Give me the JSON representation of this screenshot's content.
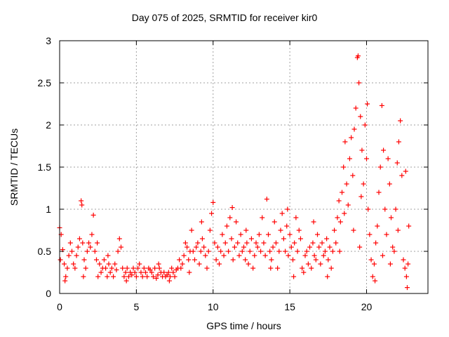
{
  "chart_data": {
    "type": "scatter",
    "title": "Day 075 of 2025, SRMTID for receiver kir0",
    "xlabel": "GPS time / hours",
    "ylabel": "SRMTID / TECUs",
    "xlim": [
      0,
      24
    ],
    "ylim": [
      0,
      3
    ],
    "xticks": [
      0,
      5,
      10,
      15,
      20
    ],
    "yticks": [
      0,
      0.5,
      1,
      1.5,
      2,
      2.5,
      3
    ],
    "ytick_labels": [
      "0",
      "0.5",
      "1",
      "1.5",
      "2",
      "2.5",
      "3"
    ],
    "grid": true,
    "marker": "+",
    "color": "#ff0000",
    "series": [
      {
        "name": "SRMTID",
        "points": [
          [
            0.0,
            0.78
          ],
          [
            0.1,
            0.7
          ],
          [
            0.2,
            0.52
          ],
          [
            0.3,
            0.35
          ],
          [
            0.4,
            0.2
          ],
          [
            0.5,
            0.3
          ],
          [
            0.6,
            0.45
          ],
          [
            0.7,
            0.6
          ],
          [
            0.8,
            0.5
          ],
          [
            0.9,
            0.35
          ],
          [
            1.0,
            0.3
          ],
          [
            1.1,
            0.45
          ],
          [
            1.2,
            0.55
          ],
          [
            1.3,
            0.65
          ],
          [
            1.4,
            1.1
          ],
          [
            1.45,
            1.05
          ],
          [
            1.5,
            0.6
          ],
          [
            1.6,
            0.4
          ],
          [
            1.7,
            0.3
          ],
          [
            1.8,
            0.5
          ],
          [
            1.9,
            0.6
          ],
          [
            2.0,
            0.55
          ],
          [
            2.1,
            0.7
          ],
          [
            2.2,
            0.93
          ],
          [
            2.3,
            0.5
          ],
          [
            2.4,
            0.4
          ],
          [
            2.5,
            0.2
          ],
          [
            2.6,
            0.35
          ],
          [
            2.7,
            0.25
          ],
          [
            2.8,
            0.3
          ],
          [
            2.9,
            0.4
          ],
          [
            3.0,
            0.3
          ],
          [
            3.1,
            0.2
          ],
          [
            3.2,
            0.35
          ],
          [
            3.3,
            0.25
          ],
          [
            3.4,
            0.3
          ],
          [
            3.5,
            0.2
          ],
          [
            3.6,
            0.35
          ],
          [
            3.7,
            0.28
          ],
          [
            3.8,
            0.5
          ],
          [
            3.9,
            0.65
          ],
          [
            4.0,
            0.55
          ],
          [
            4.1,
            0.3
          ],
          [
            4.2,
            0.2
          ],
          [
            4.3,
            0.25
          ],
          [
            4.4,
            0.3
          ],
          [
            4.5,
            0.2
          ],
          [
            4.6,
            0.25
          ],
          [
            4.7,
            0.22
          ],
          [
            4.8,
            0.3
          ],
          [
            4.9,
            0.25
          ],
          [
            5.0,
            0.2
          ],
          [
            5.1,
            0.3
          ],
          [
            5.2,
            0.35
          ],
          [
            5.3,
            0.25
          ],
          [
            5.4,
            0.2
          ],
          [
            5.5,
            0.3
          ],
          [
            5.6,
            0.25
          ],
          [
            5.7,
            0.2
          ],
          [
            5.8,
            0.3
          ],
          [
            5.9,
            0.28
          ],
          [
            6.0,
            0.25
          ],
          [
            6.1,
            0.2
          ],
          [
            6.2,
            0.3
          ],
          [
            6.3,
            0.18
          ],
          [
            6.4,
            0.22
          ],
          [
            6.5,
            0.3
          ],
          [
            6.6,
            0.25
          ],
          [
            6.7,
            0.2
          ],
          [
            6.8,
            0.25
          ],
          [
            6.9,
            0.2
          ],
          [
            7.0,
            0.22
          ],
          [
            7.1,
            0.25
          ],
          [
            7.2,
            0.2
          ],
          [
            7.3,
            0.3
          ],
          [
            7.4,
            0.25
          ],
          [
            7.5,
            0.2
          ],
          [
            7.6,
            0.28
          ],
          [
            7.7,
            0.3
          ],
          [
            7.8,
            0.4
          ],
          [
            7.9,
            0.3
          ],
          [
            8.0,
            0.35
          ],
          [
            8.1,
            0.45
          ],
          [
            8.2,
            0.6
          ],
          [
            8.3,
            0.55
          ],
          [
            8.4,
            0.4
          ],
          [
            8.5,
            0.5
          ],
          [
            8.6,
            0.75
          ],
          [
            8.7,
            0.5
          ],
          [
            8.8,
            0.4
          ],
          [
            8.9,
            0.55
          ],
          [
            9.0,
            0.6
          ],
          [
            9.1,
            0.35
          ],
          [
            9.2,
            0.5
          ],
          [
            9.3,
            0.65
          ],
          [
            9.4,
            0.55
          ],
          [
            9.5,
            0.45
          ],
          [
            9.6,
            0.3
          ],
          [
            9.7,
            0.5
          ],
          [
            9.8,
            0.75
          ],
          [
            9.9,
            0.95
          ],
          [
            10.0,
            1.08
          ],
          [
            10.1,
            0.6
          ],
          [
            10.2,
            0.4
          ],
          [
            10.3,
            0.55
          ],
          [
            10.4,
            0.35
          ],
          [
            10.5,
            0.5
          ],
          [
            10.6,
            0.7
          ],
          [
            10.7,
            0.45
          ],
          [
            10.8,
            0.6
          ],
          [
            10.9,
            0.8
          ],
          [
            11.0,
            0.5
          ],
          [
            11.1,
            0.9
          ],
          [
            11.2,
            0.65
          ],
          [
            11.3,
            0.4
          ],
          [
            11.4,
            0.55
          ],
          [
            11.5,
            0.85
          ],
          [
            11.6,
            0.6
          ],
          [
            11.7,
            0.45
          ],
          [
            11.8,
            0.7
          ],
          [
            11.9,
            0.5
          ],
          [
            12.0,
            0.55
          ],
          [
            12.1,
            0.4
          ],
          [
            12.2,
            0.6
          ],
          [
            12.3,
            0.35
          ],
          [
            12.4,
            0.5
          ],
          [
            12.5,
            0.65
          ],
          [
            12.6,
            0.3
          ],
          [
            12.7,
            0.45
          ],
          [
            12.8,
            0.6
          ],
          [
            12.9,
            0.55
          ],
          [
            13.0,
            0.7
          ],
          [
            13.1,
            0.5
          ],
          [
            13.2,
            0.9
          ],
          [
            13.3,
            0.6
          ],
          [
            13.4,
            0.45
          ],
          [
            13.5,
            1.12
          ],
          [
            13.6,
            0.7
          ],
          [
            13.7,
            0.5
          ],
          [
            13.8,
            0.4
          ],
          [
            13.9,
            0.55
          ],
          [
            14.0,
            0.85
          ],
          [
            14.1,
            0.6
          ],
          [
            14.2,
            0.3
          ],
          [
            14.3,
            0.5
          ],
          [
            14.4,
            0.75
          ],
          [
            14.5,
            0.95
          ],
          [
            14.6,
            0.65
          ],
          [
            14.7,
            0.5
          ],
          [
            14.8,
            0.8
          ],
          [
            14.9,
            0.45
          ],
          [
            15.0,
            0.7
          ],
          [
            15.1,
            0.55
          ],
          [
            15.2,
            0.4
          ],
          [
            15.3,
            0.6
          ],
          [
            15.4,
            0.9
          ],
          [
            15.5,
            0.5
          ],
          [
            15.6,
            0.75
          ],
          [
            15.7,
            0.65
          ],
          [
            15.8,
            0.3
          ],
          [
            15.9,
            0.25
          ],
          [
            16.0,
            0.45
          ],
          [
            16.1,
            0.5
          ],
          [
            16.2,
            0.35
          ],
          [
            16.3,
            0.55
          ],
          [
            16.4,
            0.3
          ],
          [
            16.5,
            0.6
          ],
          [
            16.6,
            0.45
          ],
          [
            16.7,
            0.4
          ],
          [
            16.8,
            0.7
          ],
          [
            16.9,
            0.55
          ],
          [
            17.0,
            0.35
          ],
          [
            17.1,
            0.6
          ],
          [
            17.2,
            0.45
          ],
          [
            17.3,
            0.5
          ],
          [
            17.4,
            0.65
          ],
          [
            17.5,
            0.4
          ],
          [
            17.6,
            0.55
          ],
          [
            17.7,
            0.3
          ],
          [
            17.8,
            0.5
          ],
          [
            17.9,
            0.75
          ],
          [
            18.0,
            0.6
          ],
          [
            18.1,
            0.9
          ],
          [
            18.2,
            1.1
          ],
          [
            18.3,
            0.85
          ],
          [
            18.4,
            1.2
          ],
          [
            18.5,
            1.5
          ],
          [
            18.6,
            1.8
          ],
          [
            18.7,
            1.3
          ],
          [
            18.8,
            1.05
          ],
          [
            18.9,
            1.6
          ],
          [
            19.0,
            1.85
          ],
          [
            19.1,
            1.4
          ],
          [
            19.2,
            1.95
          ],
          [
            19.3,
            2.2
          ],
          [
            19.4,
            2.8
          ],
          [
            19.45,
            2.82
          ],
          [
            19.5,
            2.5
          ],
          [
            19.6,
            2.1
          ],
          [
            19.7,
            1.7
          ],
          [
            19.8,
            1.3
          ],
          [
            19.9,
            2.0
          ],
          [
            20.0,
            1.6
          ],
          [
            20.1,
            1.0
          ],
          [
            20.2,
            0.7
          ],
          [
            20.3,
            0.4
          ],
          [
            20.4,
            0.2
          ],
          [
            20.5,
            0.35
          ],
          [
            20.6,
            0.6
          ],
          [
            20.7,
            0.8
          ],
          [
            20.8,
            1.2
          ],
          [
            20.9,
            1.5
          ],
          [
            21.0,
            2.23
          ],
          [
            21.1,
            1.7
          ],
          [
            21.2,
            1.0
          ],
          [
            21.3,
            0.7
          ],
          [
            21.4,
            1.6
          ],
          [
            21.5,
            1.3
          ],
          [
            21.6,
            0.9
          ],
          [
            21.7,
            0.55
          ],
          [
            21.8,
            0.5
          ],
          [
            21.9,
            1.0
          ],
          [
            22.0,
            1.55
          ],
          [
            22.1,
            1.8
          ],
          [
            22.2,
            2.05
          ],
          [
            22.3,
            1.4
          ],
          [
            22.4,
            0.4
          ],
          [
            22.5,
            0.3
          ],
          [
            22.6,
            0.2
          ],
          [
            22.65,
            0.07
          ],
          [
            22.7,
            0.35
          ],
          [
            22.75,
            0.8
          ],
          [
            0.05,
            0.4
          ],
          [
            0.35,
            0.15
          ],
          [
            1.55,
            0.2
          ],
          [
            2.45,
            0.6
          ],
          [
            3.15,
            0.45
          ],
          [
            4.35,
            0.15
          ],
          [
            6.45,
            0.35
          ],
          [
            7.15,
            0.15
          ],
          [
            8.45,
            0.25
          ],
          [
            9.25,
            0.85
          ],
          [
            11.25,
            1.02
          ],
          [
            12.15,
            0.75
          ],
          [
            13.75,
            0.3
          ],
          [
            14.85,
            1.0
          ],
          [
            15.25,
            0.2
          ],
          [
            16.55,
            0.85
          ],
          [
            17.45,
            0.2
          ],
          [
            18.25,
            0.5
          ],
          [
            18.55,
            0.95
          ],
          [
            19.15,
            0.75
          ],
          [
            19.55,
            0.55
          ],
          [
            20.05,
            2.25
          ],
          [
            20.55,
            0.15
          ],
          [
            21.05,
            0.45
          ],
          [
            21.55,
            0.35
          ],
          [
            22.05,
            0.75
          ],
          [
            22.55,
            1.45
          ],
          [
            19.65,
            1.15
          ]
        ]
      }
    ]
  }
}
